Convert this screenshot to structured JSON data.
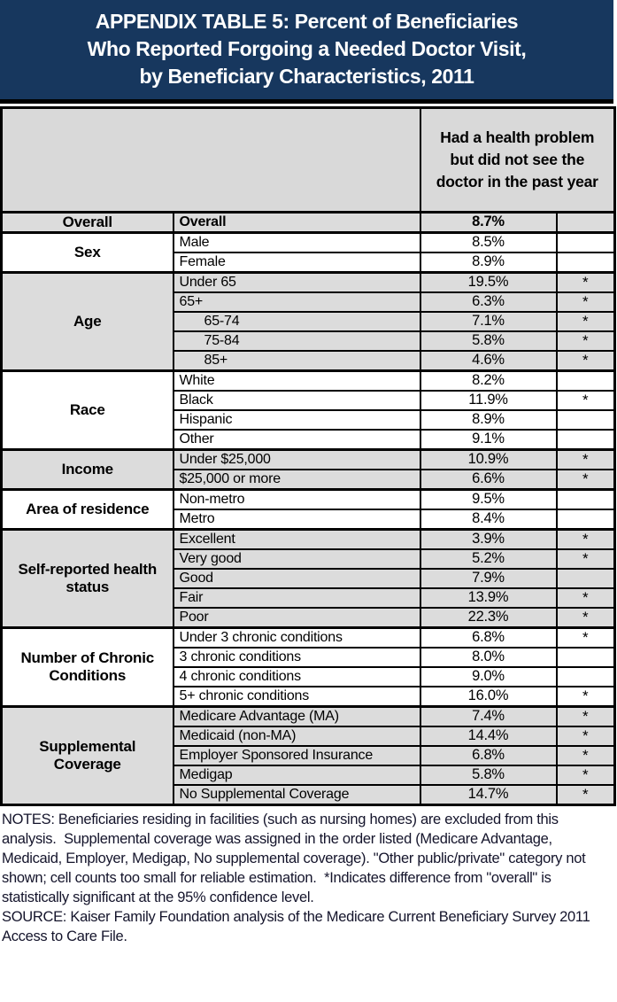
{
  "title": {
    "lines": [
      "APPENDIX TABLE 5: Percent of Beneficiaries",
      "Who Reported Forgoing a Needed Doctor Visit,",
      "by Beneficiary Characteristics, 2011"
    ]
  },
  "colors": {
    "title_background": "#17375E",
    "title_text": "#FFFFFF",
    "header_gray": "#D9D9D9",
    "band_gray": "#DCDCDC",
    "border": "#000000"
  },
  "table": {
    "header": {
      "measure": "Had a health problem but did not see the doctor in the past year"
    },
    "significance_symbol": "*",
    "groups": [
      {
        "label": "Overall",
        "shaded": true,
        "rows": [
          {
            "category": "Overall",
            "value": "8.7%",
            "sig": "",
            "bold": true
          }
        ]
      },
      {
        "label": "Sex",
        "shaded": false,
        "rows": [
          {
            "category": "Male",
            "value": "8.5%",
            "sig": ""
          },
          {
            "category": "Female",
            "value": "8.9%",
            "sig": ""
          }
        ]
      },
      {
        "label": "Age",
        "shaded": true,
        "rows": [
          {
            "category": "Under 65",
            "value": "19.5%",
            "sig": "*"
          },
          {
            "category": "65+",
            "value": "6.3%",
            "sig": "*"
          },
          {
            "category": "65-74",
            "value": "7.1%",
            "sig": "*",
            "indent": true
          },
          {
            "category": "75-84",
            "value": "5.8%",
            "sig": "*",
            "indent": true
          },
          {
            "category": "85+",
            "value": "4.6%",
            "sig": "*",
            "indent": true
          }
        ]
      },
      {
        "label": "Race",
        "shaded": false,
        "rows": [
          {
            "category": "White",
            "value": "8.2%",
            "sig": ""
          },
          {
            "category": "Black",
            "value": "11.9%",
            "sig": "*"
          },
          {
            "category": "Hispanic",
            "value": "8.9%",
            "sig": ""
          },
          {
            "category": "Other",
            "value": "9.1%",
            "sig": ""
          }
        ]
      },
      {
        "label": "Income",
        "shaded": true,
        "rows": [
          {
            "category": "Under $25,000",
            "value": "10.9%",
            "sig": "*"
          },
          {
            "category": "$25,000 or more",
            "value": "6.6%",
            "sig": "*"
          }
        ]
      },
      {
        "label": "Area of residence",
        "shaded": false,
        "rows": [
          {
            "category": "Non-metro",
            "value": "9.5%",
            "sig": ""
          },
          {
            "category": "Metro",
            "value": "8.4%",
            "sig": ""
          }
        ]
      },
      {
        "label": "Self-reported health status",
        "shaded": true,
        "rows": [
          {
            "category": "Excellent",
            "value": "3.9%",
            "sig": "*"
          },
          {
            "category": "Very good",
            "value": "5.2%",
            "sig": "*"
          },
          {
            "category": "Good",
            "value": "7.9%",
            "sig": ""
          },
          {
            "category": "Fair",
            "value": "13.9%",
            "sig": "*"
          },
          {
            "category": "Poor",
            "value": "22.3%",
            "sig": "*"
          }
        ]
      },
      {
        "label": "Number of Chronic Conditions",
        "shaded": false,
        "rows": [
          {
            "category": "Under 3 chronic conditions",
            "value": "6.8%",
            "sig": "*"
          },
          {
            "category": "3 chronic conditions",
            "value": "8.0%",
            "sig": ""
          },
          {
            "category": "4 chronic conditions",
            "value": "9.0%",
            "sig": ""
          },
          {
            "category": "5+ chronic conditions",
            "value": "16.0%",
            "sig": "*"
          }
        ]
      },
      {
        "label": "Supplemental Coverage",
        "shaded": true,
        "rows": [
          {
            "category": "Medicare Advantage (MA)",
            "value": "7.4%",
            "sig": "*"
          },
          {
            "category": "Medicaid (non-MA)",
            "value": "14.4%",
            "sig": "*"
          },
          {
            "category": "Employer Sponsored Insurance",
            "value": "6.8%",
            "sig": "*"
          },
          {
            "category": "Medigap",
            "value": "5.8%",
            "sig": "*"
          },
          {
            "category": "No Supplemental Coverage",
            "value": "14.7%",
            "sig": "*"
          }
        ]
      }
    ]
  },
  "notes": {
    "text": "NOTES: Beneficiaries residing in facilities (such as nursing homes) are excluded from this analysis.  Supplemental coverage was assigned in the order listed (Medicare Advantage, Medicaid, Employer, Medigap, No supplemental coverage). \"Other public/private\" category not shown; cell counts too small for reliable estimation.  *Indicates difference from \"overall\" is statistically significant at the 95% confidence level.",
    "source": "SOURCE: Kaiser Family Foundation analysis of the Medicare Current Beneficiary Survey 2011 Access to Care File."
  }
}
